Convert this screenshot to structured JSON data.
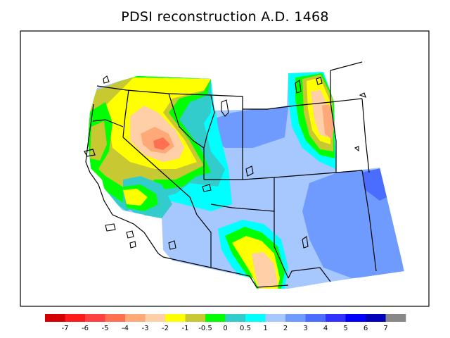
{
  "title": "PDSI reconstruction A.D. 1468",
  "legend": {
    "bins": [
      {
        "color": "#d40000"
      },
      {
        "color": "#ff1a1a"
      },
      {
        "color": "#ff4040"
      },
      {
        "color": "#ff7050"
      },
      {
        "color": "#ffa878"
      },
      {
        "color": "#ffd0a8"
      },
      {
        "color": "#ffff00"
      },
      {
        "color": "#c8c832"
      },
      {
        "color": "#00ff00"
      },
      {
        "color": "#33cccc"
      },
      {
        "color": "#00ffff"
      },
      {
        "color": "#a6c8ff"
      },
      {
        "color": "#6f9bff"
      },
      {
        "color": "#4a6cff"
      },
      {
        "color": "#3030ff"
      },
      {
        "color": "#0000ff"
      },
      {
        "color": "#0000b8"
      },
      {
        "color": "#888888"
      }
    ],
    "tick_labels": [
      "-7",
      "-6",
      "-5",
      "-4",
      "-3",
      "-2",
      "-1",
      "-0.5",
      "0",
      "0.5",
      "1",
      "2",
      "3",
      "4",
      "5",
      "6",
      "7"
    ]
  }
}
